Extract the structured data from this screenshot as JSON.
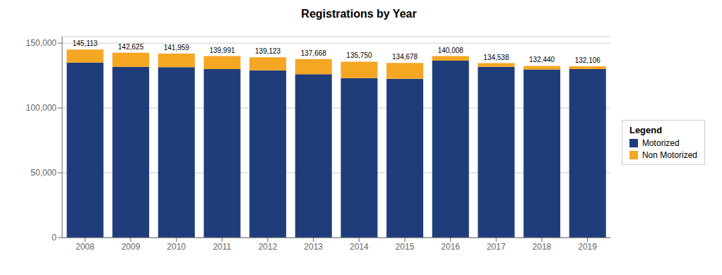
{
  "chart_data": {
    "type": "bar",
    "title": "Registrations by Year",
    "stacked": true,
    "grid": true,
    "legend": "right",
    "legend_title": "Legend",
    "categories": [
      "2008",
      "2009",
      "2010",
      "2011",
      "2012",
      "2013",
      "2014",
      "2015",
      "2016",
      "2017",
      "2018",
      "2019"
    ],
    "series": [
      {
        "name": "Motorized",
        "color": "#1f3d7a",
        "values": [
          135000,
          131800,
          131500,
          130000,
          129000,
          126000,
          123000,
          122500,
          136500,
          131800,
          129700,
          130000
        ]
      },
      {
        "name": "Non Motorized",
        "color": "#f5a623",
        "values": [
          10113,
          10825,
          10459,
          9991,
          10123,
          11668,
          12750,
          12178,
          3508,
          2738,
          2740,
          2106
        ]
      }
    ],
    "annotations": [
      {
        "x": "2008",
        "y": 145113,
        "text": "145,113"
      },
      {
        "x": "2009",
        "y": 142625,
        "text": "142,625"
      },
      {
        "x": "2010",
        "y": 141959,
        "text": "141,959"
      },
      {
        "x": "2011",
        "y": 139991,
        "text": "139,991"
      },
      {
        "x": "2012",
        "y": 139123,
        "text": "139,123"
      },
      {
        "x": "2013",
        "y": 137668,
        "text": "137,668"
      },
      {
        "x": "2014",
        "y": 135750,
        "text": "135,750"
      },
      {
        "x": "2015",
        "y": 134678,
        "text": "134,678"
      },
      {
        "x": "2016",
        "y": 140008,
        "text": "140,008"
      },
      {
        "x": "2017",
        "y": 134538,
        "text": "134,538"
      },
      {
        "x": "2018",
        "y": 132440,
        "text": "132,440"
      },
      {
        "x": "2019",
        "y": 132106,
        "text": "132,106"
      }
    ],
    "ylim": [
      0,
      155000
    ],
    "yticks": [
      0,
      {
        "value": 50000,
        "label": "50,000"
      },
      {
        "value": 100000,
        "label": "100,000"
      },
      {
        "value": 150000,
        "label": "150,000"
      }
    ]
  }
}
